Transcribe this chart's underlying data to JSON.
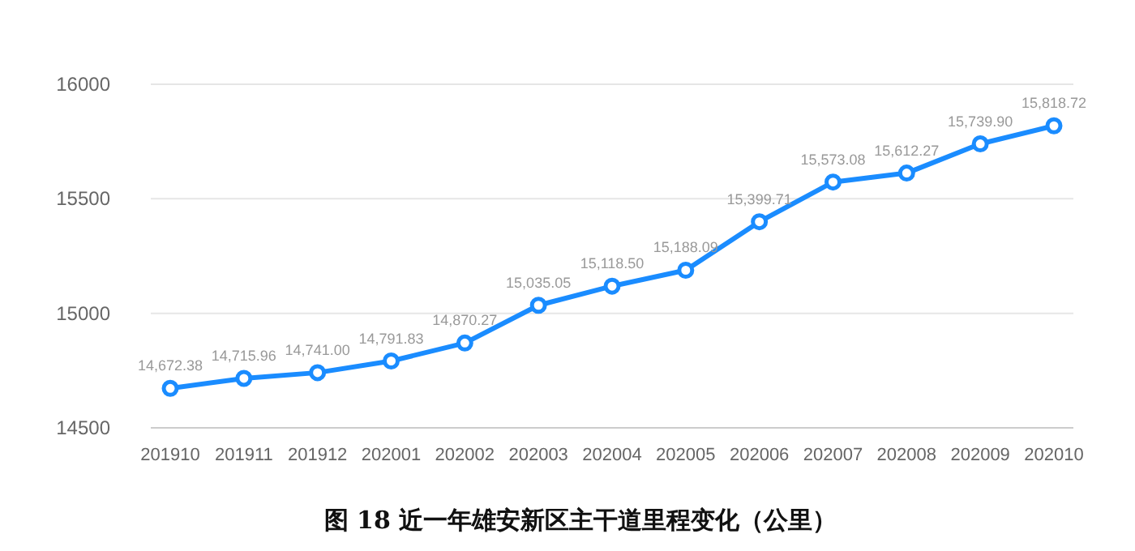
{
  "chart_data": {
    "type": "line",
    "title": "图 18  近一年雄安新区主干道里程变化（公里）",
    "categories": [
      "201910",
      "201911",
      "201912",
      "202001",
      "202002",
      "202003",
      "202004",
      "202005",
      "202006",
      "202007",
      "202008",
      "202009",
      "202010"
    ],
    "series": [
      {
        "color": "#1a8cff",
        "values": [
          14672.38,
          14715.96,
          14741.0,
          14791.83,
          14870.27,
          15035.05,
          15118.5,
          15188.09,
          15399.71,
          15573.08,
          15612.27,
          15739.9,
          15818.72
        ],
        "value_labels": [
          "14,672.38",
          "14,715.96",
          "14,741.00",
          "14,791.83",
          "14,870.27",
          "15,035.05",
          "15,118.50",
          "15,188.09",
          "15,399.71",
          "15,573.08",
          "15,612.27",
          "15,739.90",
          "15,818.72"
        ]
      }
    ],
    "ylim": [
      14500,
      16000
    ],
    "yticks": [
      14500,
      15000,
      15500,
      16000
    ],
    "grid": "y",
    "marker": "circle",
    "line_style": "solid"
  }
}
